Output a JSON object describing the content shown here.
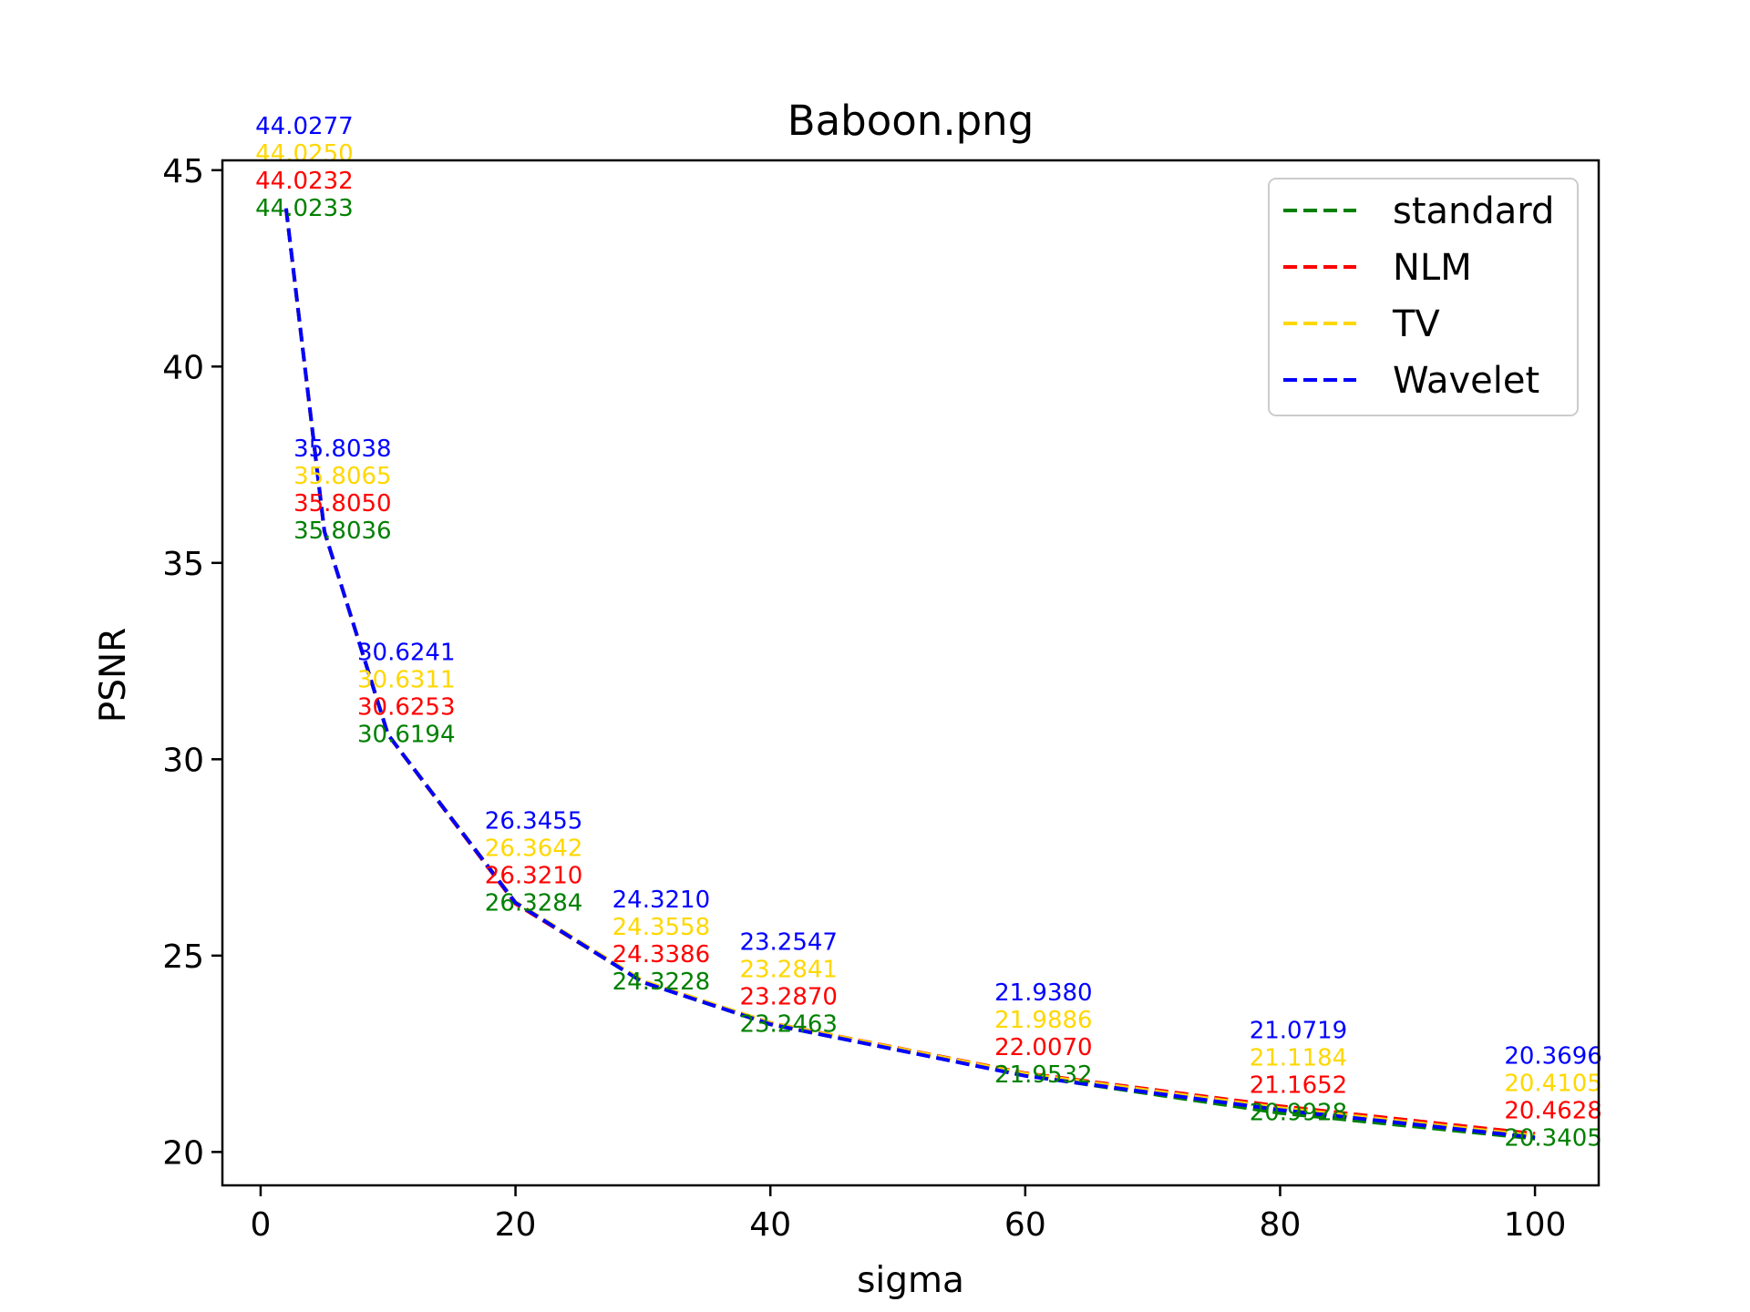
{
  "chart_data": {
    "type": "line",
    "title": "Baboon.png",
    "xlabel": "sigma",
    "ylabel": "PSNR",
    "xlim": [
      -3,
      105
    ],
    "ylim": [
      19.15,
      45.25
    ],
    "xticks": [
      0,
      20,
      40,
      60,
      80,
      100
    ],
    "xtick_labels": [
      "0",
      "20",
      "40",
      "60",
      "80",
      "100"
    ],
    "yticks": [
      20,
      25,
      30,
      35,
      40,
      45
    ],
    "ytick_labels": [
      "20",
      "25",
      "30",
      "35",
      "40",
      "45"
    ],
    "grid": false,
    "legend_position": "top-right",
    "line_style": "dashed",
    "x": [
      2,
      5,
      10,
      20,
      30,
      40,
      60,
      80,
      100
    ],
    "series": [
      {
        "name": "standard",
        "color": "#008000",
        "values": [
          44.0233,
          35.8036,
          30.6194,
          26.3284,
          24.3228,
          23.2463,
          21.9532,
          20.9928,
          20.3405
        ],
        "labels": [
          "44.0233",
          "35.8036",
          "30.6194",
          "26.3284",
          "24.3228",
          "23.2463",
          "21.9532",
          "20.9928",
          "20.3405"
        ]
      },
      {
        "name": "NLM",
        "color": "#ff0000",
        "values": [
          44.0232,
          35.805,
          30.6253,
          26.321,
          24.3386,
          23.287,
          22.007,
          21.1652,
          20.4628
        ],
        "labels": [
          "44.0232",
          "35.8050",
          "30.6253",
          "26.3210",
          "24.3386",
          "23.2870",
          "22.0070",
          "21.1652",
          "20.4628"
        ]
      },
      {
        "name": "TV",
        "color": "#ffd700",
        "values": [
          44.025,
          35.8065,
          30.6311,
          26.3642,
          24.3558,
          23.2841,
          21.9886,
          21.1184,
          20.4105
        ],
        "labels": [
          "44.0250",
          "35.8065",
          "30.6311",
          "26.3642",
          "24.3558",
          "23.2841",
          "21.9886",
          "21.1184",
          "20.4105"
        ]
      },
      {
        "name": "Wavelet",
        "color": "#0000ff",
        "values": [
          44.0277,
          35.8038,
          30.6241,
          26.3455,
          24.321,
          23.2547,
          21.938,
          21.0719,
          20.3696
        ],
        "labels": [
          "44.0277",
          "35.8038",
          "30.6241",
          "26.3455",
          "24.3210",
          "23.2547",
          "21.9380",
          "21.0719",
          "20.3696"
        ]
      }
    ]
  }
}
